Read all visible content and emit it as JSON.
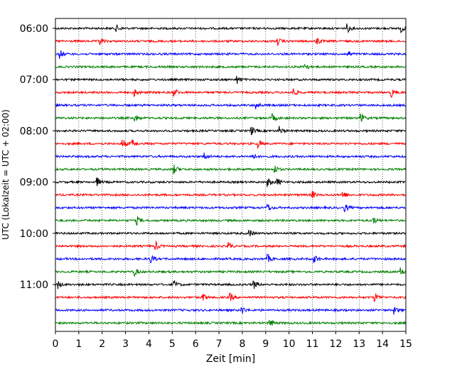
{
  "chart_data": {
    "type": "line",
    "title": "",
    "xlabel": "Zeit  [min]",
    "ylabel": "UTC (Lokalzeit = UTC + 02:00)",
    "xlim": [
      0,
      15
    ],
    "x_ticks": [
      0,
      1,
      2,
      3,
      4,
      5,
      6,
      7,
      8,
      9,
      10,
      11,
      12,
      13,
      14,
      15
    ],
    "y_tick_labels": [
      "06:00",
      "07:00",
      "08:00",
      "09:00",
      "10:00",
      "11:00"
    ],
    "row_start_times": [
      "06:00",
      "06:15",
      "06:30",
      "06:45",
      "07:00",
      "07:15",
      "07:30",
      "07:45",
      "08:00",
      "08:15",
      "08:30",
      "08:45",
      "09:00",
      "09:15",
      "09:30",
      "09:45",
      "10:00",
      "10:15",
      "10:30",
      "10:45",
      "11:00",
      "11:15",
      "11:30",
      "11:45"
    ],
    "row_colors": [
      "#000000",
      "#ff0000",
      "#0000ff",
      "#008000"
    ],
    "grid": "vertical dotted",
    "events": [
      [
        2.6,
        12.5,
        14.8
      ],
      [
        1.9,
        9.5,
        11.2
      ],
      [
        0.2,
        12.5
      ],
      [
        10.7
      ],
      [
        7.8
      ],
      [
        3.4,
        5.1,
        10.2,
        14.4
      ],
      [
        8.6
      ],
      [
        3.4,
        9.3,
        13.1
      ],
      [
        8.4,
        9.6
      ],
      [
        2.9,
        3.3,
        8.7
      ],
      [
        6.4,
        8.4
      ],
      [
        5.1,
        9.4
      ],
      [
        1.8,
        9.1,
        9.5
      ],
      [
        11.0,
        12.3
      ],
      [
        9.1,
        12.4
      ],
      [
        3.5,
        13.6
      ],
      [
        8.3
      ],
      [
        7.4,
        4.3
      ],
      [
        4.1,
        9.1,
        11.1
      ],
      [
        3.4,
        14.8
      ],
      [
        0.1,
        5.1,
        8.5
      ],
      [
        6.3,
        7.5,
        13.7
      ],
      [
        8.0,
        14.5
      ],
      [
        9.2
      ]
    ]
  }
}
